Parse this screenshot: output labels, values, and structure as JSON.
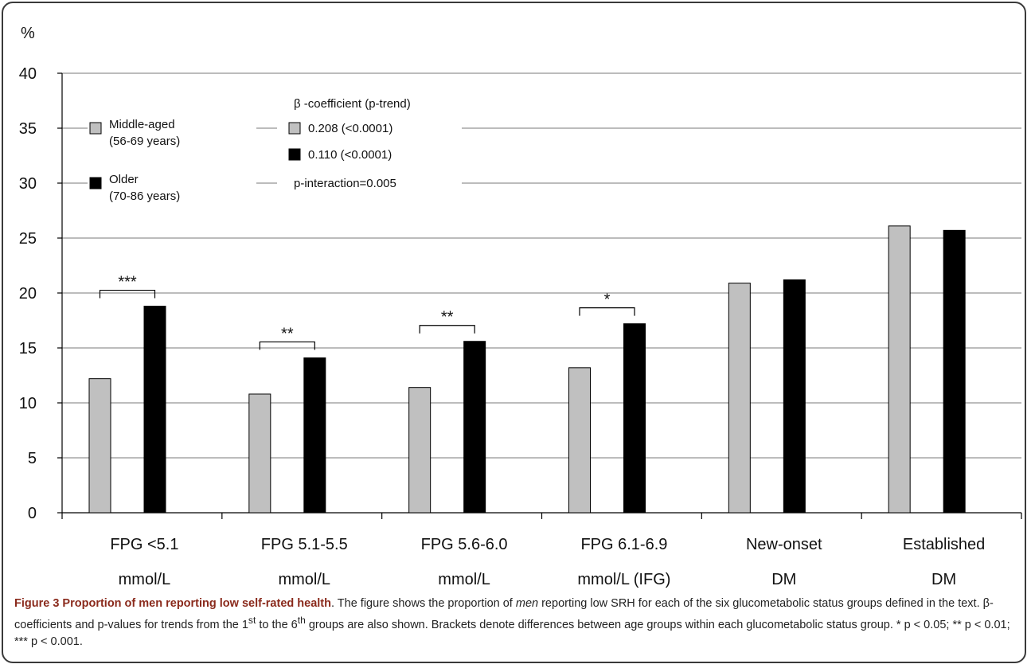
{
  "chart_data": {
    "type": "bar",
    "ylabel": "%",
    "ylim": [
      0,
      40
    ],
    "yticks": [
      0,
      5,
      10,
      15,
      20,
      25,
      30,
      35,
      40
    ],
    "grid": true,
    "categories": [
      [
        "FPG <5.1",
        "mmol/L"
      ],
      [
        "FPG 5.1-5.5",
        "mmol/L"
      ],
      [
        "FPG 5.6-6.0",
        "mmol/L"
      ],
      [
        "FPG 6.1-6.9",
        "mmol/L (IFG)"
      ],
      [
        "New-onset",
        "DM"
      ],
      [
        "Established",
        "DM"
      ]
    ],
    "series": [
      {
        "name": "Middle-aged (56-69  years)",
        "name_lines": [
          "Middle-aged",
          "(56-69  years)"
        ],
        "color": "#c0c0c0",
        "values": [
          12.2,
          10.8,
          11.4,
          13.2,
          20.9,
          26.1
        ]
      },
      {
        "name": "Older (70-86  years)",
        "name_lines": [
          "Older",
          "(70-86  years)"
        ],
        "color": "#000000",
        "values": [
          18.8,
          14.1,
          15.6,
          17.2,
          21.2,
          25.7
        ]
      }
    ],
    "significance": [
      {
        "category": 0,
        "label": "***"
      },
      {
        "category": 1,
        "label": "**"
      },
      {
        "category": 2,
        "label": "**"
      },
      {
        "category": 3,
        "label": "*"
      }
    ],
    "legend_placement": "top-left",
    "trend_box": {
      "title": "β -coefficient (p-trend)",
      "rows": [
        "0.208 (<0.0001)",
        "0.110 (<0.0001)"
      ],
      "interaction": "p-interaction=0.005"
    }
  },
  "caption": {
    "title": "Figure 3 Proportion of men reporting low self-rated health",
    "text_before_em": ". The figure shows the proportion of ",
    "em": "men",
    "text_after_em": " reporting low SRH for each of the six glucometabolic status groups defined in the text. β-coefficients and p-values for trends from the 1",
    "sup1": "st",
    "text_mid": " to the 6",
    "sup2": "th",
    "text_end": " groups are also shown. Brackets denote differences between age groups within each glucometabolic status group. * p < 0.05; ** p < 0.01; *** p < 0.001."
  }
}
